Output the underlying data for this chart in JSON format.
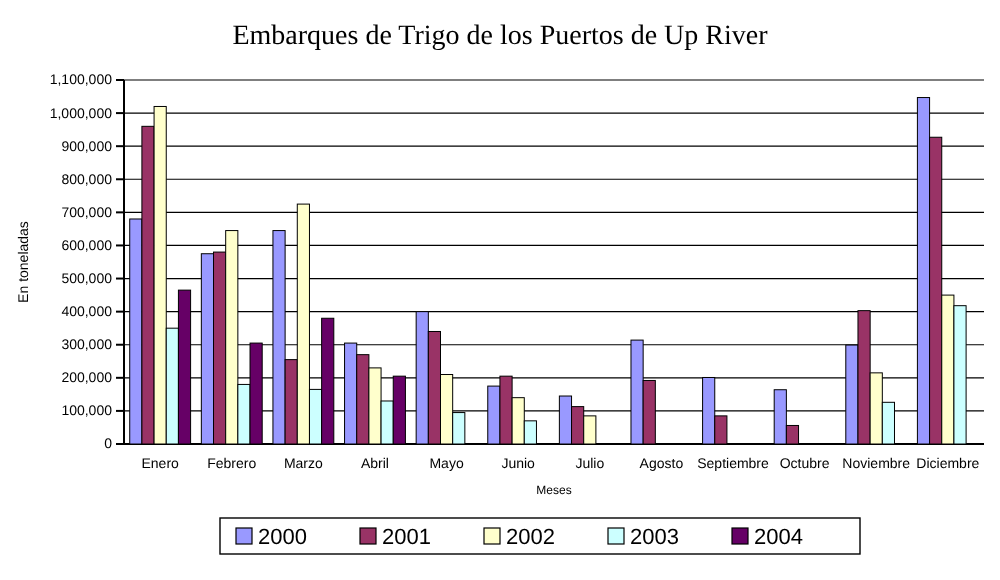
{
  "chart_data": {
    "type": "bar",
    "title": "Embarques de Trigo de los Puertos de Up River",
    "xlabel": "Meses",
    "ylabel": "En toneladas",
    "categories": [
      "Enero",
      "Febrero",
      "Marzo",
      "Abril",
      "Mayo",
      "Junio",
      "Julio",
      "Agosto",
      "Septiembre",
      "Octubre",
      "Noviembre",
      "Diciembre"
    ],
    "series": [
      {
        "name": "2000",
        "color": "#9999ff",
        "values": [
          680000,
          575000,
          645000,
          305000,
          400000,
          175000,
          145000,
          314000,
          201000,
          164000,
          299000,
          1047000
        ]
      },
      {
        "name": "2001",
        "color": "#993366",
        "values": [
          960000,
          580000,
          255000,
          270000,
          340000,
          205000,
          113000,
          192000,
          85000,
          56000,
          403000,
          927000
        ]
      },
      {
        "name": "2002",
        "color": "#ffffcc",
        "values": [
          1020000,
          645000,
          725000,
          230000,
          210000,
          140000,
          85000,
          0,
          0,
          0,
          215000,
          450000
        ]
      },
      {
        "name": "2003",
        "color": "#ccffff",
        "values": [
          350000,
          180000,
          165000,
          130000,
          95000,
          70000,
          0,
          0,
          0,
          null,
          126000,
          418000
        ]
      },
      {
        "name": "2004",
        "color": "#660066",
        "values": [
          465000,
          305000,
          380000,
          205000,
          null,
          null,
          null,
          null,
          null,
          null,
          null,
          null
        ]
      }
    ],
    "ylim": [
      0,
      1100000
    ],
    "yticks": [
      {
        "value": 0,
        "label": "0"
      },
      {
        "value": 100000,
        "label": "100,000"
      },
      {
        "value": 200000,
        "label": "200,000"
      },
      {
        "value": 300000,
        "label": "300,000"
      },
      {
        "value": 400000,
        "label": "400,000"
      },
      {
        "value": 500000,
        "label": "500,000"
      },
      {
        "value": 600000,
        "label": "600,000"
      },
      {
        "value": 700000,
        "label": "700,000"
      },
      {
        "value": 800000,
        "label": "800,000"
      },
      {
        "value": 900000,
        "label": "900,000"
      },
      {
        "value": 1000000,
        "label": "1,000,000"
      },
      {
        "value": 1100000,
        "label": "1,100,000"
      }
    ],
    "grid": "y",
    "legend": "bottom"
  }
}
